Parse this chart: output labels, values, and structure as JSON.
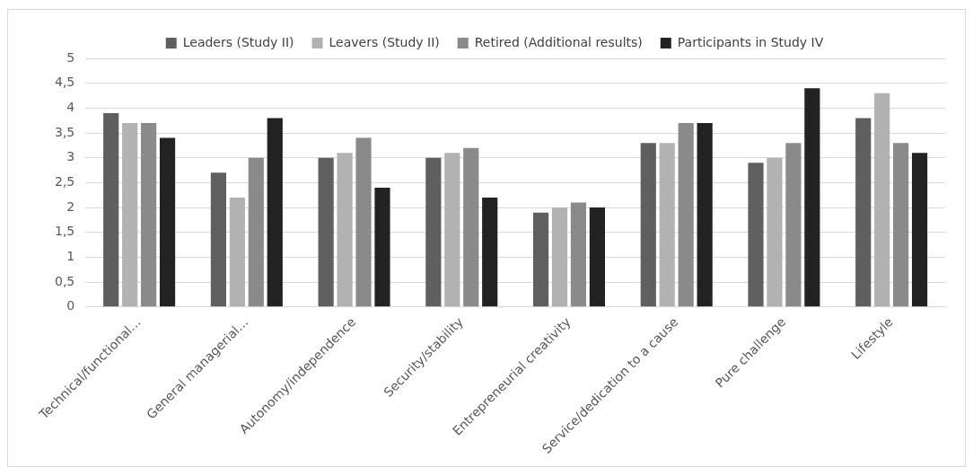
{
  "chart_data": {
    "type": "bar",
    "categories": [
      "Technical/functional…",
      "General managerial…",
      "Autonomy/independence",
      "Security/stability",
      "Entrepreneurial creativity",
      "Service/dedication to a cause",
      "Pure challenge",
      "Lifestyle"
    ],
    "series": [
      {
        "name": "Leaders (Study II)",
        "color": "#5f5f5f",
        "values": [
          3.9,
          2.7,
          3.0,
          3.0,
          1.9,
          3.3,
          2.9,
          3.8
        ]
      },
      {
        "name": "Leavers (Study II)",
        "color": "#b2b2b2",
        "values": [
          3.7,
          2.2,
          3.1,
          3.1,
          2.0,
          3.3,
          3.0,
          4.3
        ]
      },
      {
        "name": "Retired (Additional results)",
        "color": "#8a8a8a",
        "values": [
          3.7,
          3.0,
          3.4,
          3.2,
          2.1,
          3.7,
          3.3,
          3.3
        ]
      },
      {
        "name": "Participants in Study IV",
        "color": "#222222",
        "values": [
          3.4,
          3.8,
          2.4,
          2.2,
          2.0,
          3.7,
          4.4,
          3.1
        ]
      }
    ],
    "ylim": [
      0,
      5
    ],
    "yticks": [
      0,
      {
        "value": 0.5,
        "label": "0,5"
      },
      1,
      {
        "value": 1.5,
        "label": "1,5"
      },
      2,
      {
        "value": 2.5,
        "label": "2,5"
      },
      3,
      {
        "value": 3.5,
        "label": "3,5"
      },
      4,
      {
        "value": 4.5,
        "label": "4,5"
      },
      5
    ],
    "grid": "y",
    "legend": "top"
  }
}
